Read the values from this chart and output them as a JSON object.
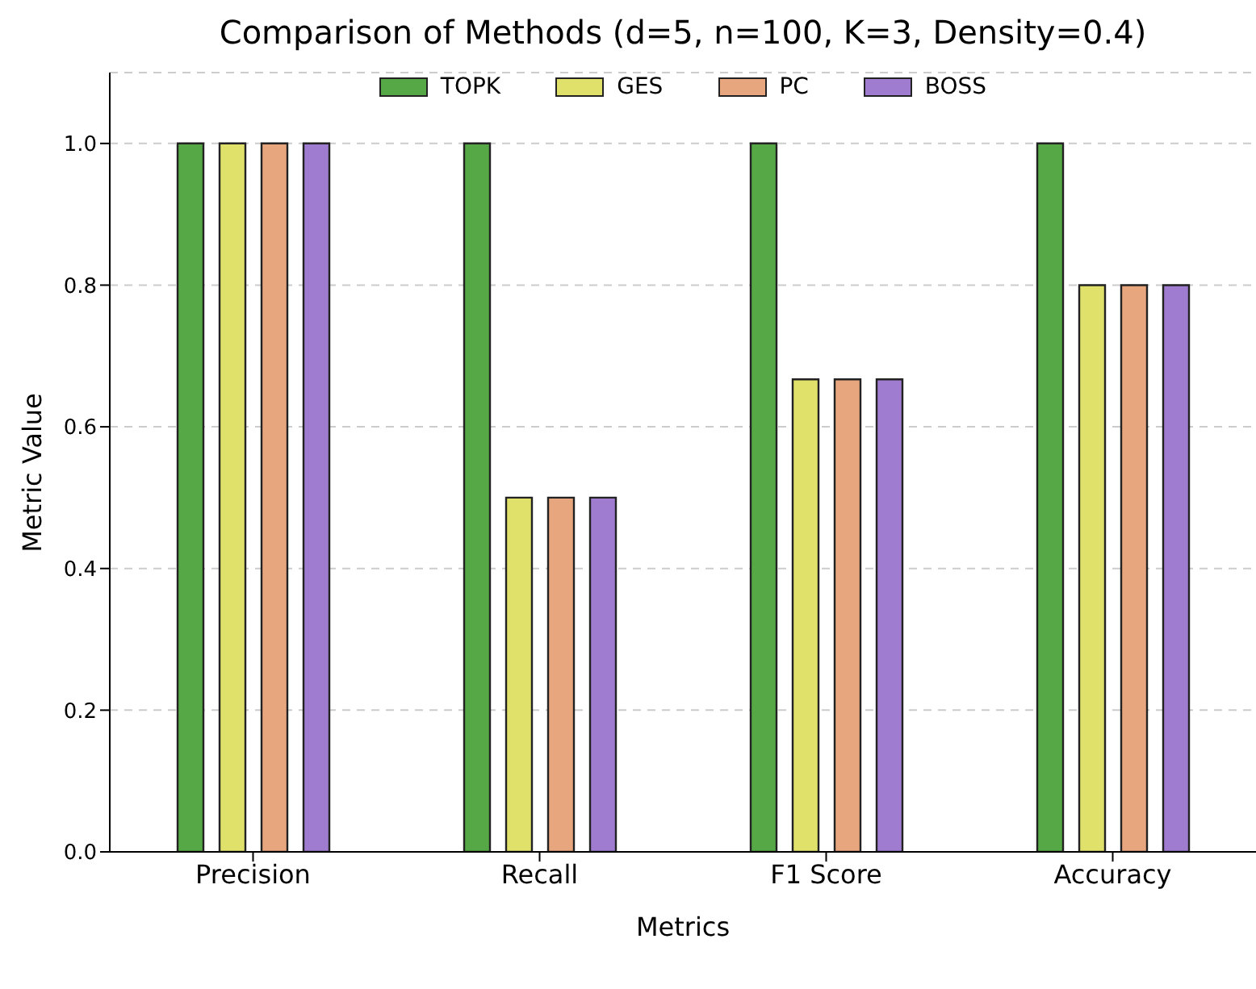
{
  "chart_data": {
    "type": "bar",
    "title": "Comparison of Methods (d=5, n=100, K=3, Density=0.4)",
    "xlabel": "Metrics",
    "ylabel": "Metric Value",
    "categories": [
      "Precision",
      "Recall",
      "F1 Score",
      "Accuracy"
    ],
    "series": [
      {
        "name": "TOPK",
        "color": "#55a845",
        "values": [
          1.0,
          1.0,
          1.0,
          1.0
        ]
      },
      {
        "name": "GES",
        "color": "#e0e16b",
        "values": [
          1.0,
          0.5,
          0.667,
          0.8
        ]
      },
      {
        "name": "PC",
        "color": "#e7a67d",
        "values": [
          1.0,
          0.5,
          0.667,
          0.8
        ]
      },
      {
        "name": "BOSS",
        "color": "#a07cd0",
        "values": [
          1.0,
          0.5,
          0.667,
          0.8
        ]
      }
    ],
    "ylim": [
      0,
      1.1
    ],
    "yticks": [
      {
        "value": 0,
        "label": "0.0"
      },
      {
        "value": 0.2,
        "label": "0.2"
      },
      {
        "value": 0.4,
        "label": "0.4"
      },
      {
        "value": 0.6,
        "label": "0.6"
      },
      {
        "value": 0.8,
        "label": "0.8"
      },
      {
        "value": 1,
        "label": "1.0"
      }
    ],
    "grid": "y",
    "legend": "top"
  }
}
